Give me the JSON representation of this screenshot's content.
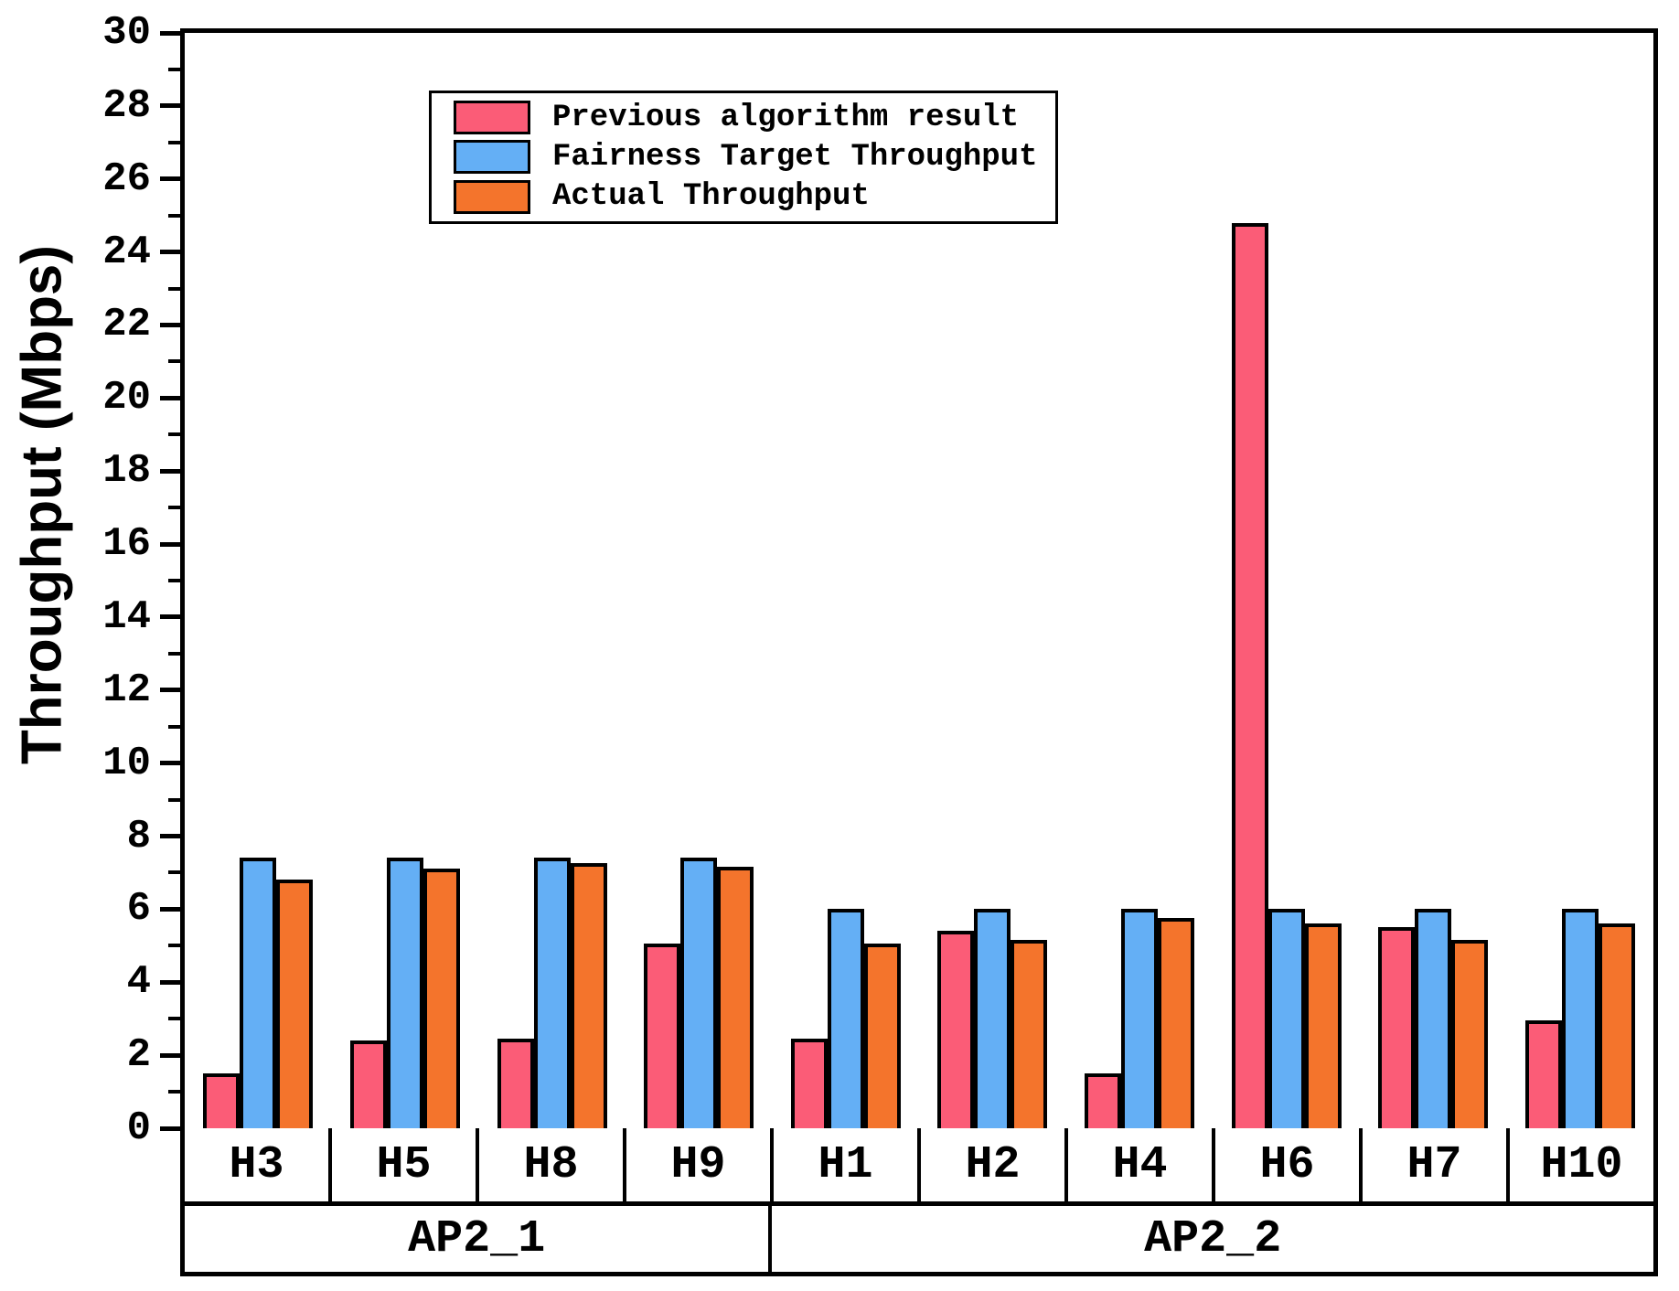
{
  "chart_data": {
    "type": "bar",
    "title": "",
    "ylabel": "Throughput (Mbps)",
    "ylim": [
      0,
      30
    ],
    "ytick_major_step": 2,
    "ytick_minor_step": 1,
    "grid": false,
    "legend_position": "upper-left",
    "categories": [
      "H3",
      "H5",
      "H8",
      "H9",
      "H1",
      "H2",
      "H4",
      "H6",
      "H7",
      "H10"
    ],
    "groups": [
      {
        "label": "AP2_1",
        "hosts": [
          "H3",
          "H5",
          "H8",
          "H9"
        ]
      },
      {
        "label": "AP2_2",
        "hosts": [
          "H1",
          "H2",
          "H4",
          "H6",
          "H7",
          "H10"
        ]
      }
    ],
    "series": [
      {
        "name": "Previous algorithm result",
        "color": "#FB5C77",
        "values": [
          1.5,
          2.4,
          2.45,
          5.05,
          2.45,
          5.4,
          1.5,
          24.8,
          5.5,
          2.95
        ]
      },
      {
        "name": "Fairness Target Throughput",
        "color": "#64AFF5",
        "values": [
          7.4,
          7.4,
          7.4,
          7.4,
          6.0,
          6.0,
          6.0,
          6.0,
          6.0,
          6.0
        ]
      },
      {
        "name": "Actual Throughput",
        "color": "#F4742C",
        "values": [
          6.8,
          7.1,
          7.25,
          7.15,
          5.05,
          5.15,
          5.75,
          5.6,
          5.15,
          5.6
        ]
      }
    ],
    "axis_color": "#000000",
    "tick_label_color": "#000000"
  }
}
